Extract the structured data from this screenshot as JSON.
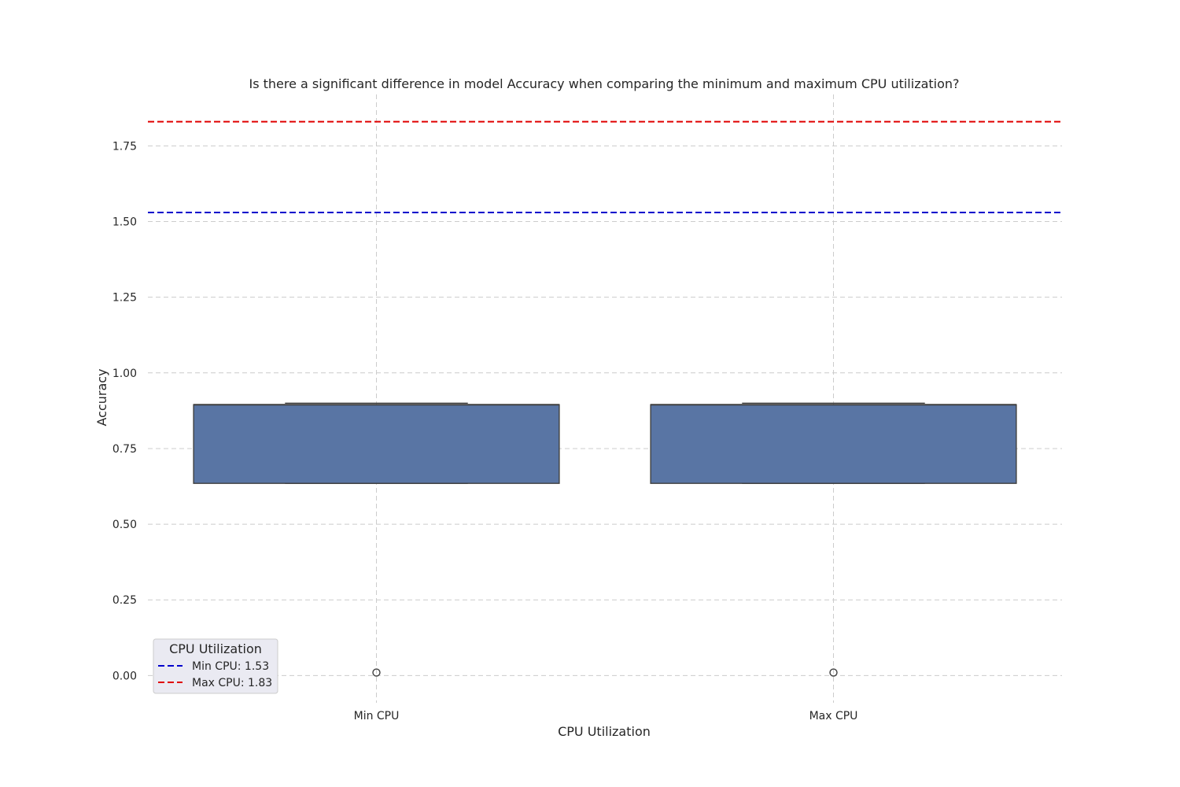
{
  "chart_data": {
    "type": "box",
    "title": "Is there a significant difference in model Accuracy when comparing the minimum and maximum CPU utilization?",
    "xlabel": "CPU Utilization",
    "ylabel": "Accuracy",
    "ylim": [
      -0.09,
      1.92
    ],
    "yticks": [
      "0.00",
      "0.25",
      "0.50",
      "0.75",
      "1.00",
      "1.25",
      "1.50",
      "1.75"
    ],
    "grid": true,
    "categories": [
      "Min CPU",
      "Max CPU"
    ],
    "boxes": [
      {
        "category": "Min CPU",
        "q1": 0.635,
        "median": 0.895,
        "q3": 0.895,
        "whisker_low": 0.635,
        "whisker_high": 0.9,
        "fliers": [
          0.01
        ]
      },
      {
        "category": "Max CPU",
        "q1": 0.635,
        "median": 0.895,
        "q3": 0.895,
        "whisker_low": 0.635,
        "whisker_high": 0.9,
        "fliers": [
          0.01
        ]
      }
    ],
    "reference_lines": [
      {
        "label": "Min CPU: 1.53",
        "value": 1.53,
        "color": "#0000cc"
      },
      {
        "label": "Max CPU: 1.83",
        "value": 1.83,
        "color": "#e00000"
      }
    ],
    "legend": {
      "title": "CPU Utilization",
      "placement": "lower-left",
      "entries": [
        "Min CPU: 1.53",
        "Max CPU: 1.83"
      ]
    },
    "colors": {
      "box": "#5975a4"
    }
  }
}
